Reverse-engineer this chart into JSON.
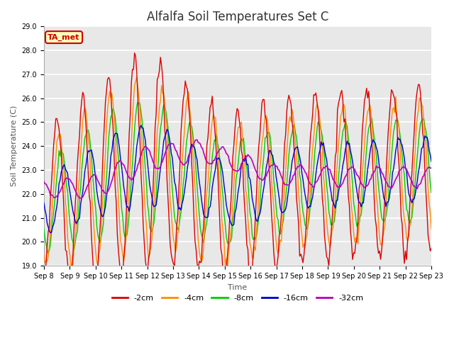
{
  "title": "Alfalfa Soil Temperatures Set C",
  "xlabel": "Time",
  "ylabel": "Soil Temperature (C)",
  "ylim": [
    19.0,
    29.0
  ],
  "yticks": [
    19.0,
    20.0,
    21.0,
    22.0,
    23.0,
    24.0,
    25.0,
    26.0,
    27.0,
    28.0,
    29.0
  ],
  "xtick_labels": [
    "Sep 8",
    "Sep 9",
    "Sep 10",
    "Sep 11",
    "Sep 12",
    "Sep 13",
    "Sep 14",
    "Sep 15",
    "Sep 16",
    "Sep 17",
    "Sep 18",
    "Sep 19",
    "Sep 20",
    "Sep 21",
    "Sep 22",
    "Sep 23"
  ],
  "colors": {
    "-2cm": "#dd0000",
    "-4cm": "#ff8c00",
    "-8cm": "#00cc00",
    "-16cm": "#0000cc",
    "-32cm": "#bb00bb"
  },
  "legend_labels": [
    "-2cm",
    "-4cm",
    "-8cm",
    "-16cm",
    "-32cm"
  ],
  "annotation_text": "TA_met",
  "annotation_color": "#cc0000",
  "annotation_bg": "#ffffbb",
  "plot_bg": "#e8e8e8",
  "fig_bg": "#ffffff",
  "grid_color": "#ffffff",
  "title_fontsize": 12,
  "tick_fontsize": 7,
  "label_fontsize": 8
}
